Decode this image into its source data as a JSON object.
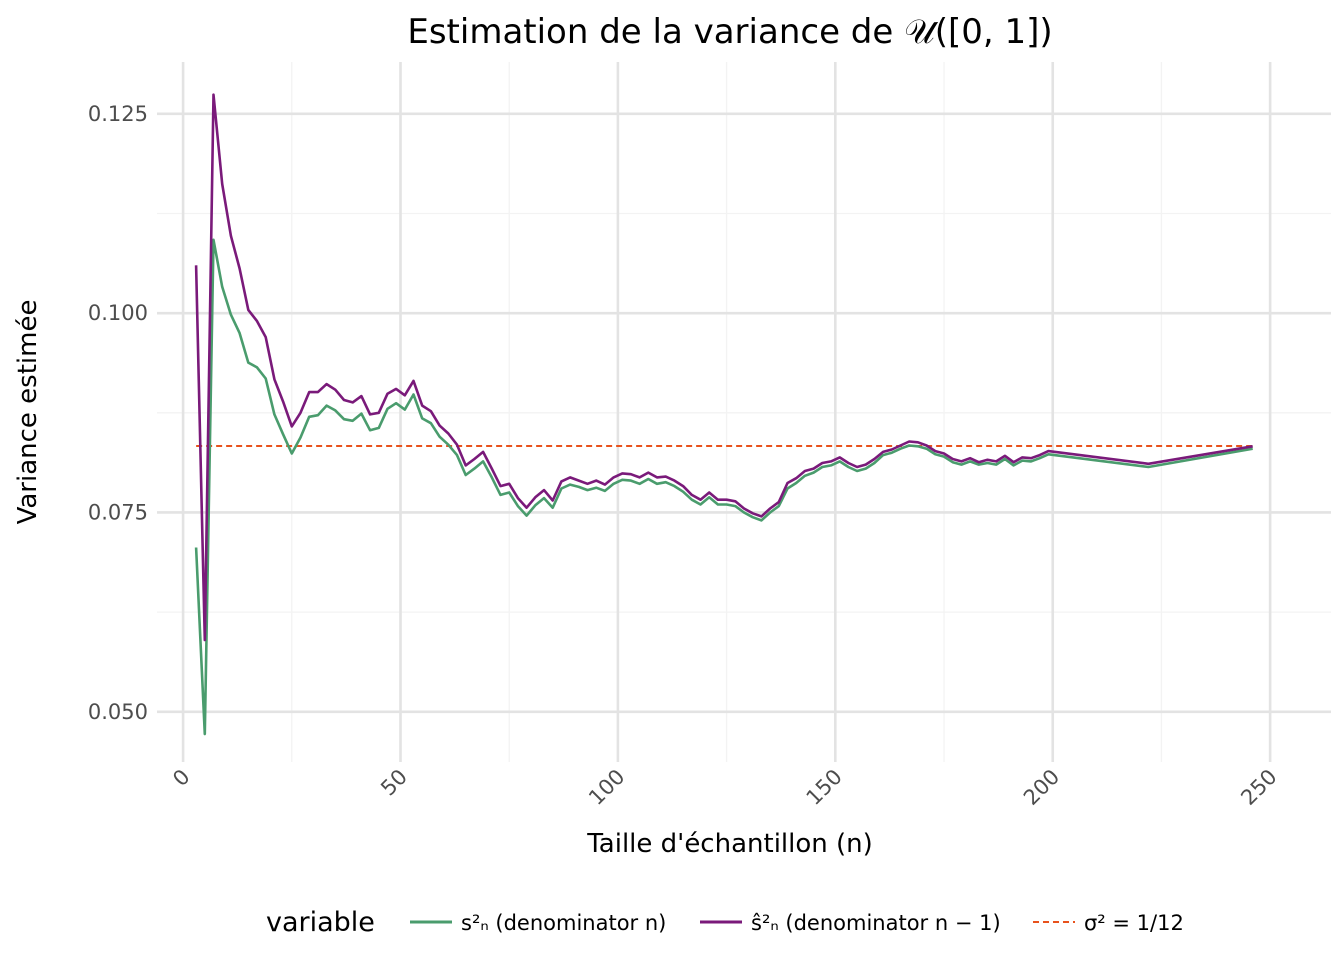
{
  "chart_data": {
    "type": "line",
    "title": "Estimation de la variance de 𝒰([0, 1])",
    "xlabel": "Taille d'échantillon (n)",
    "ylabel": "Variance estimée",
    "xlim": [
      -6,
      264
    ],
    "ylim": [
      0.0437,
      0.1315
    ],
    "x_ticks": [
      0,
      50,
      100,
      150,
      200,
      250
    ],
    "x_tick_labels": [
      "0",
      "50",
      "100",
      "150",
      "200",
      "250"
    ],
    "y_ticks": [
      0.05,
      0.075,
      0.1,
      0.125
    ],
    "y_tick_labels": [
      "0.050",
      "0.075",
      "0.100",
      "0.125"
    ],
    "grid": true,
    "legend": {
      "position": "bottom",
      "title": "variable",
      "entries": [
        "s²ₙ (denominator n)",
        "ŝ²ₙ (denominator n − 1)",
        "σ² = 1/12"
      ]
    },
    "colors": {
      "s_n": "#4a9c6d",
      "s_hat_n": "#7a1a7a",
      "reference": "#e8521c"
    },
    "reference_line": {
      "y": 0.08333,
      "style": "dashed"
    },
    "x": [
      3,
      5,
      7,
      9,
      11,
      13,
      15,
      17,
      19,
      21,
      23,
      25,
      27,
      29,
      31,
      33,
      35,
      37,
      39,
      41,
      43,
      45,
      47,
      49,
      51,
      53,
      55,
      57,
      59,
      61,
      63,
      65,
      67,
      69,
      71,
      73,
      75,
      77,
      79,
      81,
      83,
      85,
      87,
      89,
      91,
      93,
      95,
      97,
      99,
      101,
      103,
      105,
      107,
      109,
      111,
      113,
      115,
      117,
      119,
      121,
      123,
      125,
      127,
      129,
      131,
      133,
      135,
      137,
      139,
      141,
      143,
      145,
      147,
      149,
      151,
      153,
      155,
      157,
      159,
      161,
      163,
      165,
      167,
      169,
      171,
      173,
      175,
      177,
      179,
      181,
      183,
      185,
      187,
      189,
      191,
      193,
      195,
      197,
      199,
      222,
      246
    ],
    "series": [
      {
        "name": "s²ₙ (denominator n)",
        "values": [
          0.0706,
          0.0472,
          0.1092,
          0.1033,
          0.0998,
          0.0975,
          0.0938,
          0.0932,
          0.0918,
          0.0873,
          0.0848,
          0.0824,
          0.0844,
          0.087,
          0.0872,
          0.0884,
          0.0878,
          0.0867,
          0.0865,
          0.0874,
          0.0853,
          0.0856,
          0.088,
          0.0887,
          0.0879,
          0.0898,
          0.0868,
          0.0862,
          0.0845,
          0.0835,
          0.0822,
          0.0797,
          0.0805,
          0.0814,
          0.0794,
          0.0772,
          0.0775,
          0.0758,
          0.0746,
          0.0759,
          0.0768,
          0.0756,
          0.078,
          0.0785,
          0.0782,
          0.0778,
          0.0781,
          0.0777,
          0.0786,
          0.0791,
          0.079,
          0.0786,
          0.0792,
          0.0786,
          0.0788,
          0.0783,
          0.0776,
          0.0766,
          0.076,
          0.0769,
          0.076,
          0.076,
          0.0758,
          0.075,
          0.0744,
          0.074,
          0.075,
          0.0758,
          0.078,
          0.0787,
          0.0796,
          0.08,
          0.0807,
          0.0809,
          0.0814,
          0.0807,
          0.0802,
          0.0805,
          0.0812,
          0.0822,
          0.0825,
          0.083,
          0.0834,
          0.0833,
          0.083,
          0.0823,
          0.082,
          0.0813,
          0.081,
          0.0814,
          0.081,
          0.0812,
          0.081,
          0.0817,
          0.0809,
          0.0815,
          0.0814,
          0.0818,
          0.0823,
          0.0807,
          0.083
        ]
      },
      {
        "name": "ŝ²ₙ (denominator n − 1)",
        "values": [
          0.106,
          0.059,
          0.1274,
          0.1162,
          0.1097,
          0.1056,
          0.1004,
          0.099,
          0.097,
          0.0917,
          0.0889,
          0.0858,
          0.0875,
          0.0901,
          0.0901,
          0.0911,
          0.0904,
          0.0891,
          0.0888,
          0.0896,
          0.0873,
          0.0875,
          0.0899,
          0.0905,
          0.0897,
          0.0915,
          0.0884,
          0.0877,
          0.0859,
          0.0849,
          0.0835,
          0.0809,
          0.0817,
          0.0826,
          0.0805,
          0.0783,
          0.0786,
          0.0768,
          0.0756,
          0.0769,
          0.0778,
          0.0765,
          0.0789,
          0.0794,
          0.079,
          0.0786,
          0.079,
          0.0785,
          0.0794,
          0.0799,
          0.0798,
          0.0794,
          0.08,
          0.0794,
          0.0795,
          0.079,
          0.0783,
          0.0772,
          0.0766,
          0.0775,
          0.0766,
          0.0766,
          0.0764,
          0.0755,
          0.0749,
          0.0745,
          0.0755,
          0.0763,
          0.0787,
          0.0793,
          0.0802,
          0.0805,
          0.0812,
          0.0814,
          0.0819,
          0.0812,
          0.0807,
          0.081,
          0.0817,
          0.0826,
          0.0829,
          0.0834,
          0.0839,
          0.0838,
          0.0834,
          0.0827,
          0.0824,
          0.0817,
          0.0814,
          0.0818,
          0.0813,
          0.0816,
          0.0814,
          0.0821,
          0.0813,
          0.0819,
          0.0818,
          0.0822,
          0.0827,
          0.0811,
          0.0833
        ]
      }
    ]
  }
}
